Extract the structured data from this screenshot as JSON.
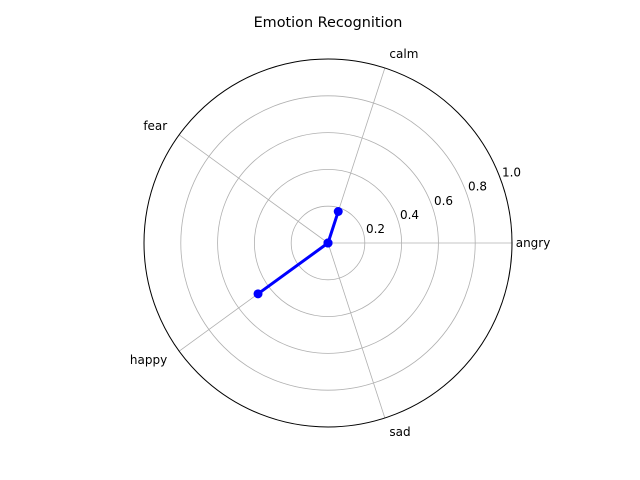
{
  "chart_data": {
    "type": "radar",
    "title": "Emotion Recognition",
    "categories": [
      "angry",
      "calm",
      "fear",
      "happy",
      "sad"
    ],
    "series": [
      {
        "values": [
          0.0,
          0.18,
          0.0,
          0.47,
          0.0
        ],
        "color": "#0000ff"
      }
    ],
    "radial_range": [
      0,
      1.0
    ],
    "radial_ticks": [
      0.2,
      0.4,
      0.6,
      0.8,
      1.0
    ],
    "radial_tick_labels": [
      "0.2",
      "0.4",
      "0.6",
      "0.8",
      "1.0"
    ],
    "grid": true,
    "gridline_color": "#b0b0b0",
    "frame_color": "#000000"
  }
}
